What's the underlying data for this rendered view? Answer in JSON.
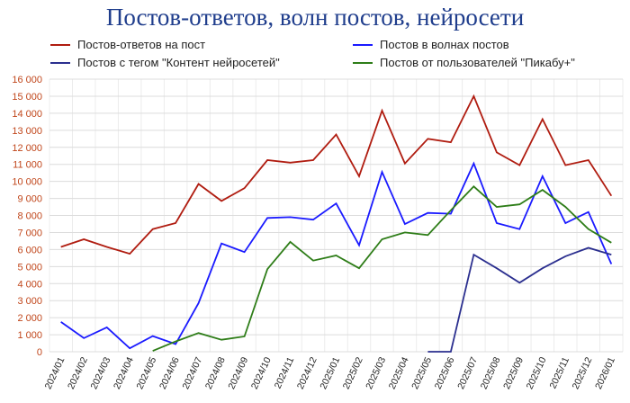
{
  "chart_data": {
    "type": "line",
    "title": "Постов-ответов, волн постов, нейросети",
    "xlabel": "",
    "ylabel": "",
    "ylim": [
      0,
      16000
    ],
    "yticks": [
      "0",
      "1 000",
      "2 000",
      "3 000",
      "4 000",
      "5 000",
      "6 000",
      "7 000",
      "8 000",
      "9 000",
      "10 000",
      "11 000",
      "12 000",
      "13 000",
      "14 000",
      "15 000",
      "16 000"
    ],
    "grid": true,
    "legend_position": "top",
    "categories": [
      "2024/01",
      "2024/02",
      "2024/03",
      "2024/04",
      "2024/05",
      "2024/06",
      "2024/07",
      "2024/08",
      "2024/09",
      "2024/10",
      "2024/11",
      "2024/12",
      "2025/01",
      "2025/02",
      "2025/03",
      "2025/04",
      "2025/05",
      "2025/06",
      "2025/07",
      "2025/08",
      "2025/09",
      "2025/10",
      "2025/11",
      "2025/12",
      "2026/01"
    ],
    "series": [
      {
        "name": "Постов-ответов на пост",
        "color": "#b01c10",
        "values": [
          6150,
          6600,
          6150,
          5750,
          7200,
          7550,
          9850,
          8850,
          9600,
          11250,
          11100,
          11250,
          12750,
          10300,
          14150,
          11050,
          12500,
          12300,
          15000,
          11700,
          10950,
          13650,
          10950,
          11250,
          9150
        ]
      },
      {
        "name": "Постов в волнах постов",
        "color": "#1a1aff",
        "values": [
          1750,
          800,
          1430,
          200,
          920,
          450,
          2850,
          6350,
          5850,
          7850,
          7900,
          7750,
          8700,
          6250,
          10550,
          7500,
          8150,
          8100,
          11050,
          7550,
          7200,
          10300,
          7550,
          8200,
          5150
        ]
      },
      {
        "name": "Постов с тегом \"Контент нейросетей\"",
        "color": "#2b2f8f",
        "values": [
          null,
          null,
          null,
          null,
          null,
          null,
          null,
          null,
          null,
          null,
          null,
          null,
          null,
          null,
          null,
          null,
          0,
          0,
          5700,
          4900,
          4050,
          4900,
          5600,
          6100,
          5700
        ]
      },
      {
        "name": "Постов от пользователей \"Пикабу+\"",
        "color": "#2e7d18",
        "values": [
          null,
          null,
          null,
          null,
          50,
          600,
          1100,
          700,
          900,
          4850,
          6450,
          5350,
          5650,
          4900,
          6600,
          7000,
          6850,
          8300,
          9700,
          8500,
          8650,
          9500,
          8500,
          7200,
          6400
        ]
      }
    ]
  }
}
